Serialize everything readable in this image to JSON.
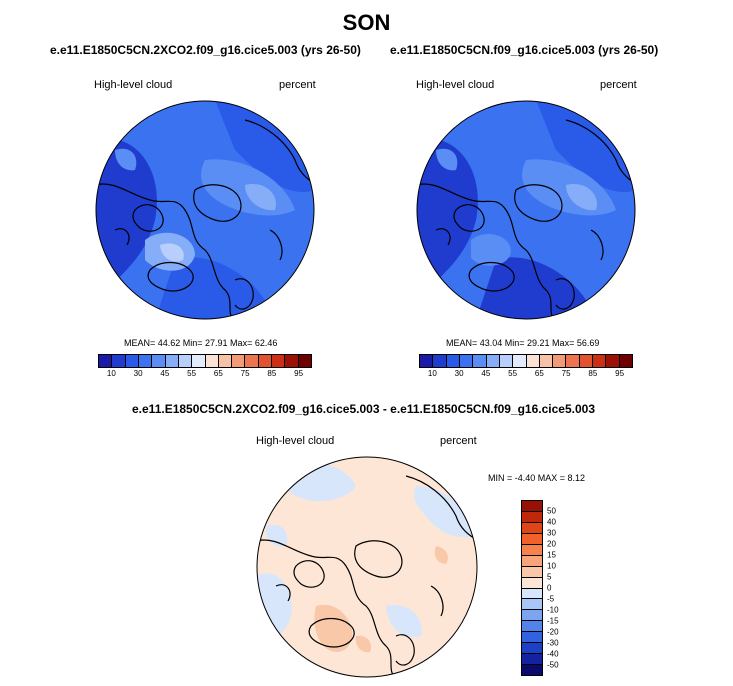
{
  "season": "SON",
  "panels": [
    {
      "case": "e.e11.E1850C5CN.2XCO2.f09_g16.cice5.003 (yrs 26-50)",
      "field": "High-level cloud",
      "units": "percent",
      "stats_text": "MEAN=  44.62  Min=  27.91  Max=  62.46",
      "stats": {
        "mean": 44.62,
        "min": 27.91,
        "max": 62.46
      }
    },
    {
      "case": "e.e11.E1850C5CN.f09_g16.cice5.003 (yrs 26-50)",
      "field": "High-level cloud",
      "units": "percent",
      "stats_text": "MEAN=  43.04  Min=  29.21  Max=  56.69",
      "stats": {
        "mean": 43.04,
        "min": 29.21,
        "max": 56.69
      }
    }
  ],
  "diff": {
    "title": "e.e11.E1850C5CN.2XCO2.f09_g16.cice5.003 - e.e11.E1850C5CN.f09_g16.cice5.003",
    "field": "High-level cloud",
    "units": "percent",
    "minmax_text": "MIN =  -4.40 MAX =   8.12",
    "min": -4.4,
    "max": 8.12
  },
  "colorbar_main": {
    "tick_labels": [
      "10",
      "30",
      "45",
      "55",
      "65",
      "75",
      "85",
      "95"
    ],
    "colors": [
      "#1a1aa6",
      "#1f3ccf",
      "#2a5ae8",
      "#3b72f0",
      "#5a8ef5",
      "#86adf7",
      "#b9cffb",
      "#e3ecfd",
      "#fbe2d4",
      "#f8c2a6",
      "#f39b77",
      "#ec7450",
      "#e2522f",
      "#cc2e16",
      "#9c1005",
      "#6e0000"
    ]
  },
  "colorbar_diff": {
    "tick_labels": [
      "50",
      "40",
      "30",
      "20",
      "15",
      "10",
      "5",
      "0",
      "-5",
      "-10",
      "-15",
      "-20",
      "-30",
      "-40",
      "-50"
    ],
    "colors": [
      "#9a1003",
      "#c0280b",
      "#e04518",
      "#f0622a",
      "#f5824a",
      "#f6a57a",
      "#f8c8a8",
      "#fde6d6",
      "#d8e6fb",
      "#a9c6f7",
      "#7ca4f1",
      "#5283eb",
      "#3162e0",
      "#1c40c8",
      "#14229f",
      "#0a0a6e"
    ]
  },
  "colors": {
    "land_outline": "#000000",
    "main_field_dark": "#1f3ccf",
    "main_field_mid": "#3b72f0",
    "main_field_light": "#86adf7",
    "diff_field_pos": "#fde6d6",
    "diff_field_neg": "#d8e6fb",
    "diff_field_warm": "#f6a57a"
  }
}
